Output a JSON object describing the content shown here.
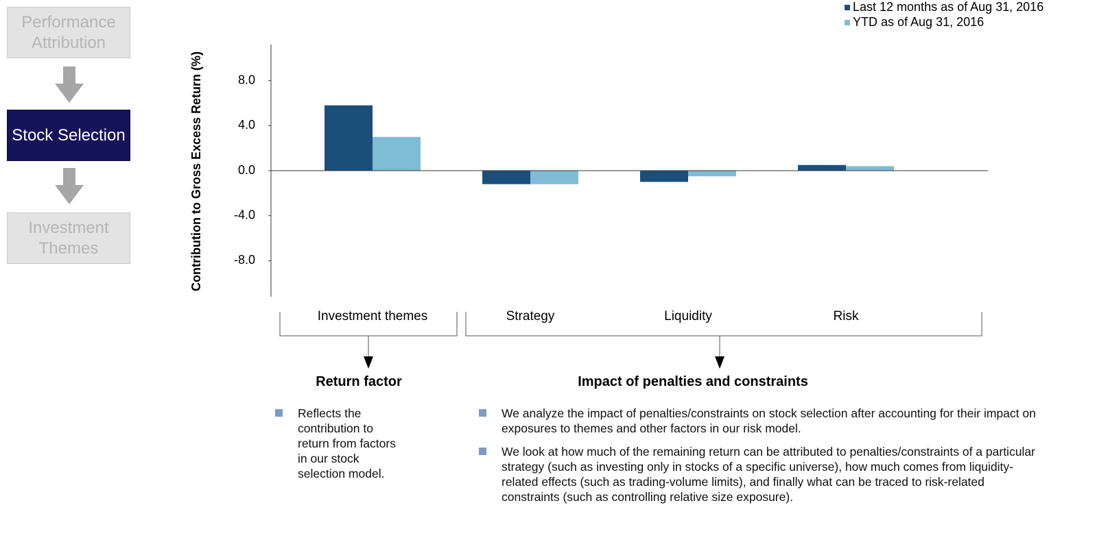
{
  "nav": [
    "Performance Attribution",
    "Stock Selection",
    "Investment Themes"
  ],
  "chart_data": {
    "type": "bar",
    "y_label": "Contribution to Gross Excess Return (%)",
    "categories": [
      "Investment themes",
      "Strategy",
      "Liquidity",
      "Risk"
    ],
    "series": [
      {
        "name": "Last 12 months as of Aug 31, 2016",
        "color": "#1b4f79",
        "values": [
          5.8,
          -1.2,
          -1.0,
          0.5
        ]
      },
      {
        "name": "YTD as of Aug 31, 2016",
        "color": "#7fbcd6",
        "values": [
          3.0,
          -1.2,
          -0.5,
          0.4
        ]
      }
    ],
    "ylim": [
      -11.2,
      11.2
    ],
    "yticks": [
      {
        "value": -8,
        "label": "-8.0"
      },
      {
        "value": -4,
        "label": "-4.0"
      },
      {
        "value": 0,
        "label": "0.0"
      },
      {
        "value": 4,
        "label": "4.0"
      },
      {
        "value": 8,
        "label": "8.0"
      }
    ],
    "legend": "top-right"
  },
  "groups": [
    {
      "title": "Return factor",
      "bullets": [
        "Reflects the contribution to return from factors in our stock selection model."
      ]
    },
    {
      "title": "Impact of penalties and constraints",
      "bullets": [
        "We analyze the impact of penalties/constraints on stock selection after accounting for their impact on exposures to themes and other factors in our risk model.",
        "We look at how much of the remaining return can be attributed to penalties/constraints of a particular strategy (such as investing only in stocks of a specific universe), how much comes from liquidity-related effects (such as trading-volume limits), and finally what can be traced to risk-related constraints (such as controlling relative size exposure)."
      ]
    }
  ]
}
